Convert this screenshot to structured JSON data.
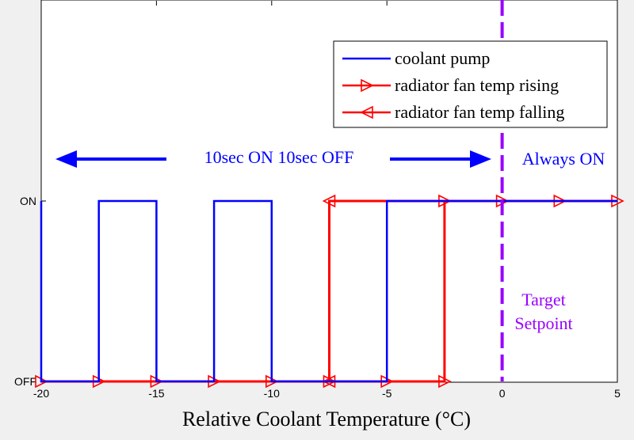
{
  "chart_data": {
    "type": "line",
    "xlabel": "Relative Coolant Temperature (°C)",
    "ylabel": "",
    "xlim": [
      -20,
      5
    ],
    "ylim": [
      "OFF",
      "ON"
    ],
    "x_ticks": [
      "-20",
      "-15",
      "-10",
      "-5",
      "0",
      "5"
    ],
    "y_ticks": [
      "OFF",
      "ON"
    ],
    "legend_position": "top-right",
    "series": [
      {
        "name": "coolant pump",
        "color": "#0000ff",
        "marker": "none",
        "points": [
          [
            -20,
            0
          ],
          [
            -20,
            1
          ],
          [
            -20,
            0
          ],
          [
            -17.5,
            0
          ],
          [
            -17.5,
            1
          ],
          [
            -15,
            1
          ],
          [
            -15,
            0
          ],
          [
            -12.5,
            0
          ],
          [
            -12.5,
            1
          ],
          [
            -10,
            1
          ],
          [
            -10,
            0
          ],
          [
            -5,
            0
          ],
          [
            -5,
            1
          ],
          [
            5,
            1
          ]
        ]
      },
      {
        "name": "radiator fan temp rising",
        "color": "#ff0000",
        "marker": "triangle-right",
        "points": [
          [
            -20,
            0
          ],
          [
            -17.5,
            0
          ],
          [
            -15,
            0
          ],
          [
            -12.5,
            0
          ],
          [
            -10,
            0
          ],
          [
            -7.5,
            0
          ],
          [
            -5,
            0
          ],
          [
            -2.5,
            0
          ],
          [
            -2.5,
            1
          ],
          [
            0,
            1
          ],
          [
            2.5,
            1
          ],
          [
            5,
            1
          ]
        ],
        "marker_x": [
          -20,
          -17.5,
          -15,
          -12.5,
          -10,
          -7.5,
          -5,
          -2.5,
          -2.5,
          0,
          2.5,
          5
        ]
      },
      {
        "name": "radiator fan temp falling",
        "color": "#ff0000",
        "marker": "triangle-left",
        "points": [
          [
            5,
            1
          ],
          [
            -7.5,
            1
          ],
          [
            -7.5,
            0
          ],
          [
            -20,
            0
          ]
        ],
        "marker_x": [
          -7.5,
          -7.5
        ]
      }
    ],
    "annotations": {
      "period_text": "10sec ON 10sec OFF",
      "always_on_text": "Always ON",
      "setpoint_line1": "Target",
      "setpoint_line2": "Setpoint",
      "setpoint_x": 0,
      "period_arrow_from": -20,
      "period_arrow_to": 0
    },
    "colors": {
      "pump": "#0000ff",
      "fan": "#ff0000",
      "setpoint": "#9900ff",
      "annotation_blue": "#0000ff"
    }
  }
}
